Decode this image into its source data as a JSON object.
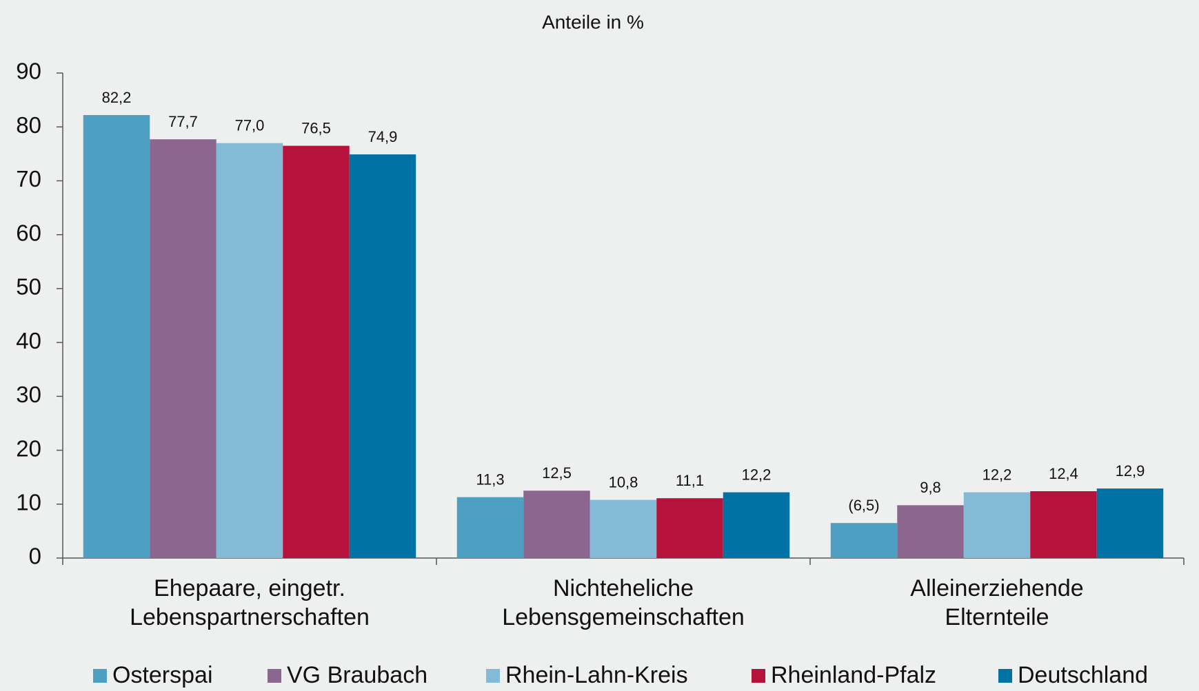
{
  "chart_data": {
    "type": "bar",
    "title": "Anteile in %",
    "categories": [
      "Ehepaare, eingetr.\nLebenspartnerschaften",
      "Nichteheliche\nLebensgemeinschaften",
      "Alleinerziehende\nElternteile"
    ],
    "series": [
      {
        "name": "Osterspai",
        "color": "#4f9fc3",
        "values": [
          82.2,
          11.3,
          6.5
        ],
        "value_labels": [
          "82,2",
          "11,3",
          "(6,5)"
        ]
      },
      {
        "name": "VG Braubach",
        "color": "#8b668f",
        "values": [
          77.7,
          12.5,
          9.8
        ],
        "value_labels": [
          "77,7",
          "12,5",
          "9,8"
        ]
      },
      {
        "name": "Rhein-Lahn-Kreis",
        "color": "#84bad6",
        "values": [
          77.0,
          10.8,
          12.2
        ],
        "value_labels": [
          "77,0",
          "10,8",
          "12,2"
        ]
      },
      {
        "name": "Rheinland-Pfalz",
        "color": "#b5133c",
        "values": [
          76.5,
          11.1,
          12.4
        ],
        "value_labels": [
          "76,5",
          "11,1",
          "12,4"
        ]
      },
      {
        "name": "Deutschland",
        "color": "#0072a3",
        "values": [
          74.9,
          12.2,
          12.9
        ],
        "value_labels": [
          "74,9",
          "12,2",
          "12,9"
        ]
      }
    ],
    "ylim": [
      0,
      90
    ],
    "yticks": [
      0,
      10,
      20,
      30,
      40,
      50,
      60,
      70,
      80,
      90
    ],
    "legend": "bottom"
  }
}
